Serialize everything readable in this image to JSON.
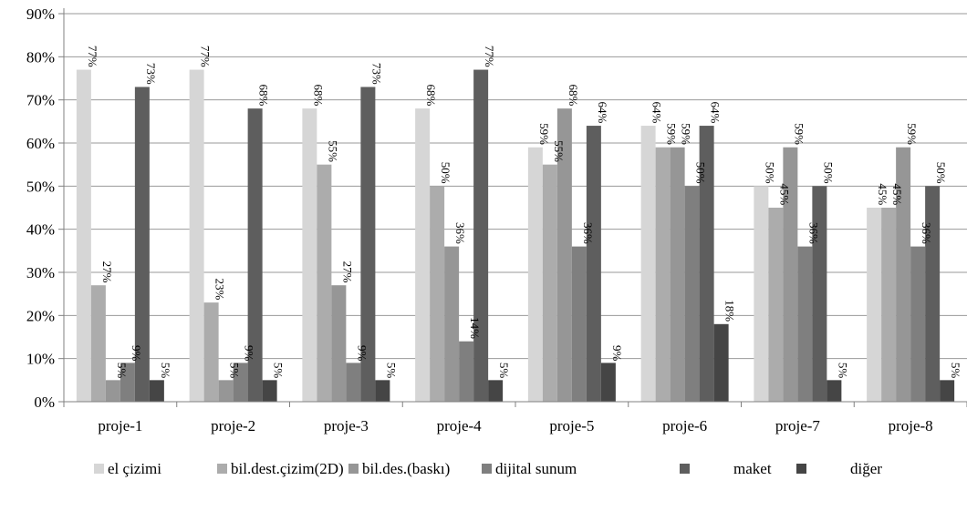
{
  "chart_data": {
    "type": "bar",
    "categories": [
      "proje-1",
      "proje-2",
      "proje-3",
      "proje-4",
      "proje-5",
      "proje-6",
      "proje-7",
      "proje-8"
    ],
    "ylim": [
      0,
      90
    ],
    "y_ticks": [
      0,
      10,
      20,
      30,
      40,
      50,
      60,
      70,
      80,
      90
    ],
    "y_tick_format": "{v}%",
    "grid": true,
    "legend_position": "bottom",
    "series": [
      {
        "name": "el çizimi",
        "color": "#d6d6d6",
        "values": [
          77,
          77,
          68,
          68,
          59,
          64,
          50,
          45
        ],
        "labels": [
          "77%",
          "77%",
          "68%",
          "68%",
          "59%",
          "64%",
          "50%",
          "45%"
        ]
      },
      {
        "name": "bil.dest.çizim(2D)",
        "color": "#acacac",
        "values": [
          27,
          23,
          55,
          50,
          55,
          59,
          45,
          45
        ],
        "labels": [
          "27%",
          "23%",
          "55%",
          "50%",
          "55%",
          "59%",
          "45%",
          "45%"
        ]
      },
      {
        "name": "bil.des.(baskı)",
        "color": "#969696",
        "values": [
          5,
          5,
          27,
          36,
          68,
          59,
          59,
          59
        ],
        "labels": [
          "5%",
          "5%",
          "27%",
          "36%",
          "68%",
          "59%",
          "59%",
          "59%"
        ]
      },
      {
        "name": "dijital sunum",
        "color": "#7f7f7f",
        "values": [
          9,
          9,
          9,
          14,
          36,
          50,
          36,
          36
        ],
        "labels": [
          "9%",
          "9%",
          "9%",
          "14%",
          "36%",
          "50%",
          "36%",
          "36%"
        ]
      },
      {
        "name": "maket",
        "color": "#5e5e5e",
        "values": [
          73,
          68,
          73,
          77,
          64,
          64,
          50,
          50
        ],
        "labels": [
          "73%",
          "68%",
          "73%",
          "77%",
          "64%",
          "64%",
          "50%",
          "50%"
        ]
      },
      {
        "name": "diğer",
        "color": "#454545",
        "values": [
          5,
          5,
          5,
          5,
          9,
          18,
          5,
          5
        ],
        "labels": [
          "5%",
          "5%",
          "5%",
          "5%",
          "9%",
          "18%",
          "5%",
          "5%"
        ]
      }
    ]
  }
}
